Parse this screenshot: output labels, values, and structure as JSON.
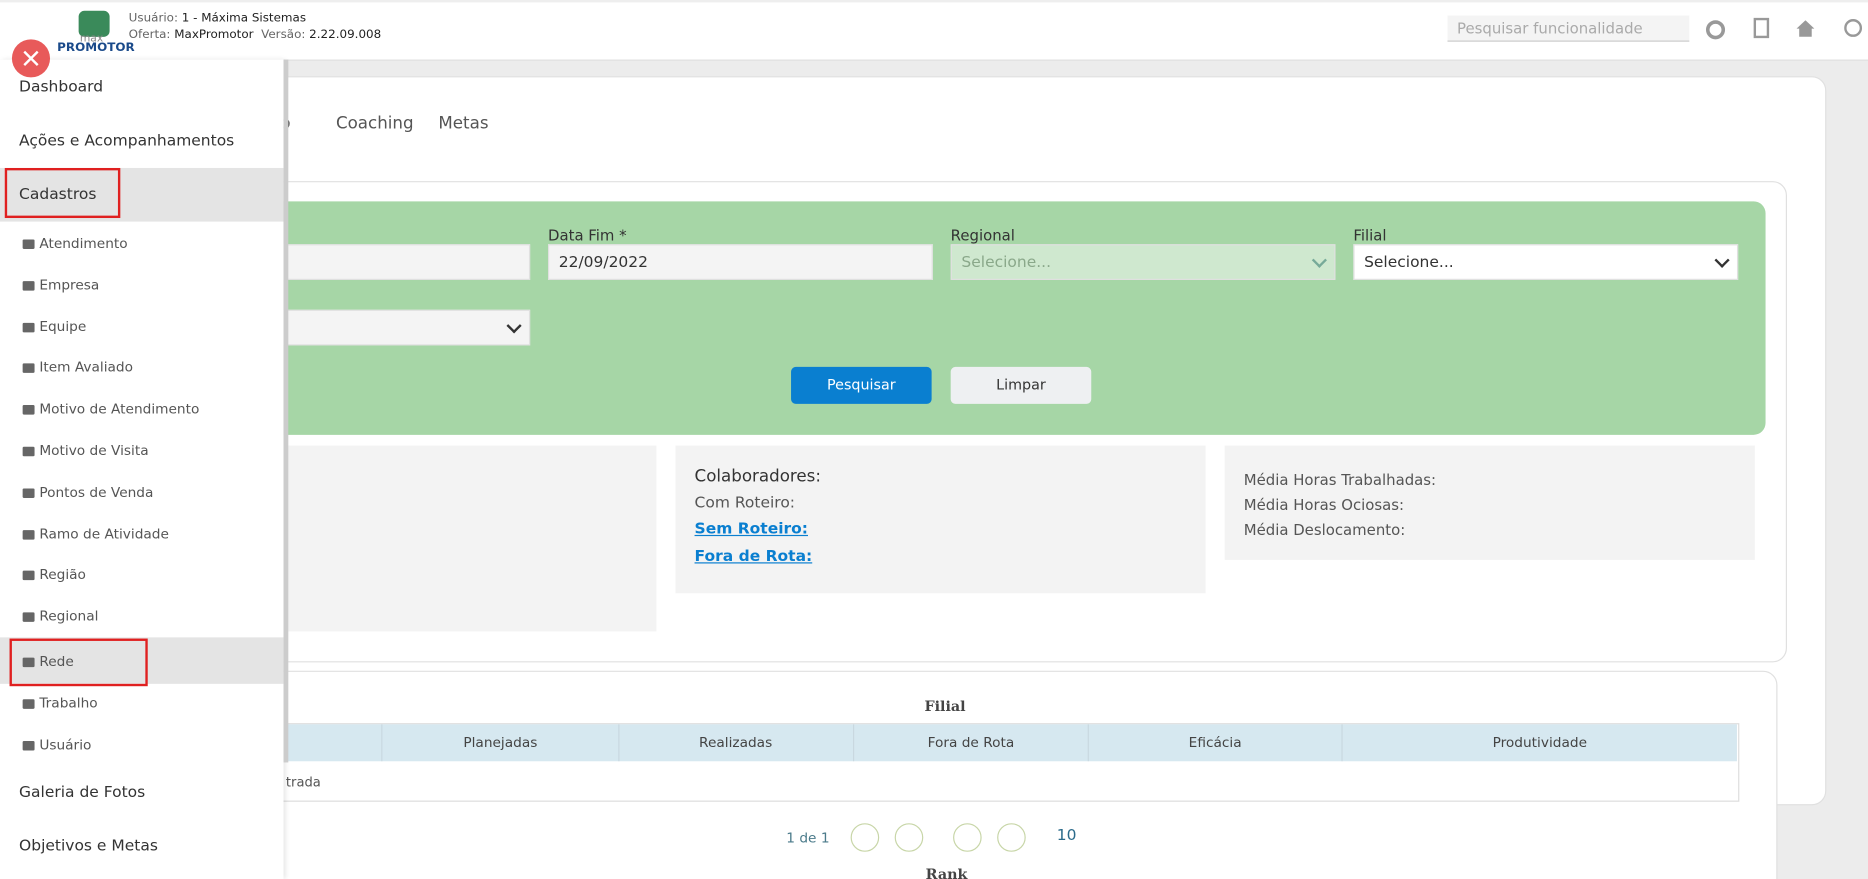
{
  "header": {
    "logo_top": "max",
    "logo_bottom": "PROMOTOR",
    "user_label": "Usuário:",
    "user": "1 - Máxima Sistemas",
    "offer_label": "Oferta:",
    "offer": "MaxPromotor",
    "version_label": "Versão:",
    "version": "2.22.09.008",
    "search": "Pesquisar funcionalidade"
  },
  "menu": {
    "items": [
      "Dashboard",
      "Ações e Acompanhamentos",
      "Cadastros"
    ],
    "sub_items": [
      "Atendimento",
      "Empresa",
      "Equipe",
      "Item Avaliado",
      "Motivo de Atendimento",
      "Motivo de Visita",
      "Pontos de Venda",
      "Ramo de Atividade",
      "Região",
      "Regional",
      "Rede",
      "Trabalho",
      "Usuário"
    ],
    "bottom_items": [
      "Galeria de Fotos",
      "Objetivos e Metas"
    ]
  },
  "tabs": [
    "nto",
    "Coaching",
    "Metas"
  ],
  "filters": {
    "end_date_label": "Data Fim *",
    "end_date": "22/09/2022",
    "regional_label": "Regional",
    "regional": "Selecione...",
    "branch_label": "Filial",
    "branch": "Selecione...",
    "search_button": "Pesquisar",
    "clear_button": "Limpar"
  },
  "stats": {
    "collaborators": "Colaboradores:",
    "with_route": "Com Roteiro:",
    "without_route": "Sem Roteiro:",
    "off_route": "Fora de Rota:",
    "avg_worked": "Média Horas Trabalhadas:",
    "avg_idle": "Média Horas Ociosas:",
    "avg_travel": "Média Deslocamento:"
  },
  "table": {
    "title": "Filial",
    "columns": [
      "Planejadas",
      "Realizadas",
      "Fora de Rota",
      "Eficácia",
      "Produtividade"
    ],
    "empty": "trada",
    "pagination": "1 de 1",
    "page_size": "10",
    "next_title": "Rank"
  }
}
